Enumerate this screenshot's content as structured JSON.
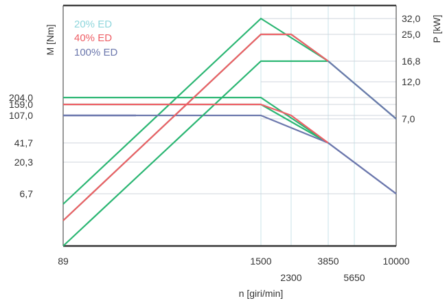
{
  "chart_data": {
    "type": "line",
    "xlabel": "n [giri/min]",
    "ylabel_left": "M [Nm]",
    "ylabel_right": "P [kW]",
    "x_ticks": [
      "89",
      "1500",
      "2300",
      "3850",
      "5650",
      "10000"
    ],
    "y_left_ticks": [
      "204,0",
      "159,0",
      "107,0",
      "41,7",
      "20,3",
      "6,7"
    ],
    "y_right_ticks": [
      "32,0",
      "25,0",
      "16,8",
      "12,0",
      "7,0"
    ],
    "grid": true,
    "legend_position": "top-left",
    "series": [
      {
        "name": "20% ED",
        "color": "#8fd6dc",
        "torque": [
          {
            "n": "89",
            "M": "204,0"
          },
          {
            "n": "1500",
            "M": "204,0"
          },
          {
            "n": "3850",
            "M": "41,7"
          }
        ],
        "power": [
          {
            "n": "89",
            "P": "6,7"
          },
          {
            "n": "1500",
            "P": "32,0"
          },
          {
            "n": "3850",
            "P": "16,8"
          }
        ]
      },
      {
        "name": "40% ED",
        "color": "#ee5f66",
        "torque": [
          {
            "n": "89",
            "M": "159,0"
          },
          {
            "n": "1500",
            "M": "159,0"
          },
          {
            "n": "3850",
            "M": "41,7"
          }
        ],
        "power": [
          {
            "n": "1500",
            "P": "25,0"
          },
          {
            "n": "2300",
            "P": "25,0"
          },
          {
            "n": "3850",
            "P": "16,8"
          }
        ]
      },
      {
        "name": "100% ED",
        "color": "#6c78ad",
        "torque": [
          {
            "n": "89",
            "M": "107,0"
          },
          {
            "n": "1500",
            "M": "107,0"
          },
          {
            "n": "3850",
            "M": "41,7"
          },
          {
            "n": "10000",
            "M": "6,7"
          }
        ],
        "power": [
          {
            "n": "1500",
            "P": "16,8"
          },
          {
            "n": "3850",
            "P": "16,8"
          },
          {
            "n": "10000",
            "P": "7,0"
          }
        ]
      }
    ]
  }
}
